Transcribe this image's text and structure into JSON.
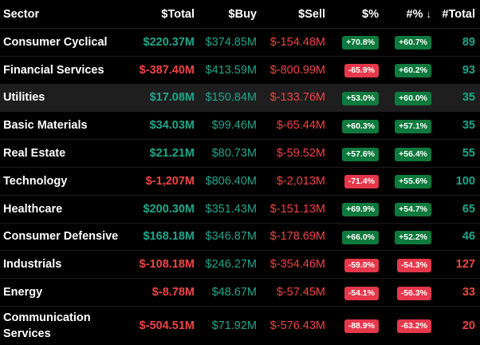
{
  "header": {
    "sector": "Sector",
    "total": "$Total",
    "buy": "$Buy",
    "sell": "$Sell",
    "pct": "$%",
    "hpct": "#%",
    "sort_arrow": "↓",
    "count": "#Total"
  },
  "rows": [
    {
      "sector": "Consumer Cyclical",
      "total": "$220.37M",
      "buy": "$374.85M",
      "sell": "$-154.48M",
      "pct": "+70.8%",
      "hpct": "+60.7%",
      "count": "89"
    },
    {
      "sector": "Financial Services",
      "total": "$-387.40M",
      "buy": "$413.59M",
      "sell": "$-800.99M",
      "pct": "-65.9%",
      "hpct": "+60.2%",
      "count": "93"
    },
    {
      "sector": "Utilities",
      "total": "$17.08M",
      "buy": "$150.84M",
      "sell": "$-133.76M",
      "pct": "+53.0%",
      "hpct": "+60.0%",
      "count": "35"
    },
    {
      "sector": "Basic Materials",
      "total": "$34.03M",
      "buy": "$99.46M",
      "sell": "$-65.44M",
      "pct": "+60.3%",
      "hpct": "+57.1%",
      "count": "35"
    },
    {
      "sector": "Real Estate",
      "total": "$21.21M",
      "buy": "$80.73M",
      "sell": "$-59.52M",
      "pct": "+57.6%",
      "hpct": "+56.4%",
      "count": "55"
    },
    {
      "sector": "Technology",
      "total": "$-1,207M",
      "buy": "$806.40M",
      "sell": "$-2,013M",
      "pct": "-71.4%",
      "hpct": "+55.6%",
      "count": "100"
    },
    {
      "sector": "Healthcare",
      "total": "$200.30M",
      "buy": "$351.43M",
      "sell": "$-151.13M",
      "pct": "+69.9%",
      "hpct": "+54.7%",
      "count": "65"
    },
    {
      "sector": "Consumer Defensive",
      "total": "$168.18M",
      "buy": "$346.87M",
      "sell": "$-178.69M",
      "pct": "+66.0%",
      "hpct": "+52.2%",
      "count": "46"
    },
    {
      "sector": "Industrials",
      "total": "$-108.18M",
      "buy": "$246.27M",
      "sell": "$-354.46M",
      "pct": "-59.0%",
      "hpct": "-54.3%",
      "count": "127"
    },
    {
      "sector": "Energy",
      "total": "$-8.78M",
      "buy": "$48.67M",
      "sell": "$-57.45M",
      "pct": "-54.1%",
      "hpct": "-56.3%",
      "count": "33"
    },
    {
      "sector_line1": "Communication",
      "sector_line2": "Services",
      "total": "$-504.51M",
      "buy": "$71.92M",
      "sell": "$-576.43M",
      "pct": "-88.9%",
      "hpct": "-63.2%",
      "count": "20"
    }
  ],
  "colors": {
    "positive_text": "#21a58a",
    "negative_text": "#ef4444",
    "positive_badge": "#0f7a3d",
    "negative_badge": "#e5384a",
    "highlight_row": "#1e1e1e",
    "background": "#000000"
  }
}
